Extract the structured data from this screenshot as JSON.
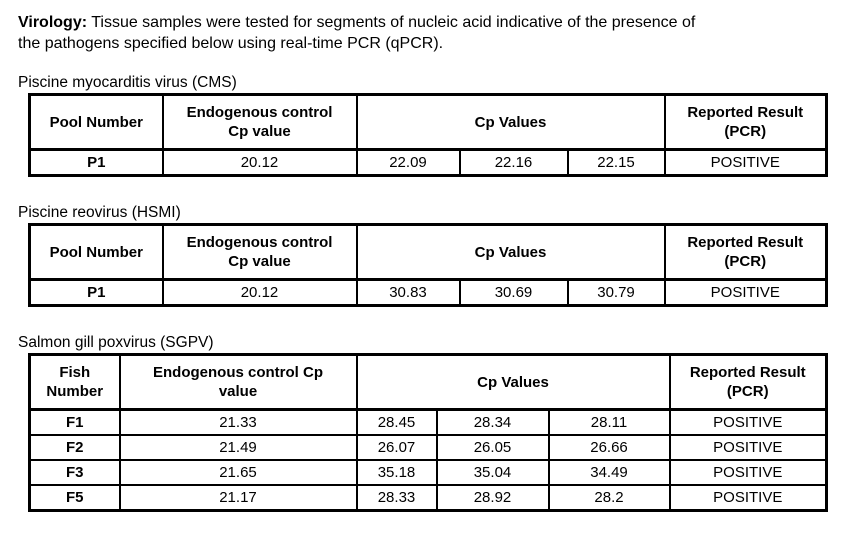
{
  "intro": {
    "label": "Virology:",
    "line1": "Tissue samples were tested for segments of nucleic acid indicative of the presence of",
    "line2": "the pathogens specified below using real-time PCR (qPCR)."
  },
  "sections": [
    {
      "title": "Piscine myocarditis virus (CMS)",
      "headers": {
        "id": "Pool Number",
        "endogenous": "Endogenous control Cp value",
        "cp": "Cp Values",
        "result": "Reported Result (PCR)"
      },
      "rows": [
        {
          "id": "P1",
          "endogenous": "20.12",
          "cp1": "22.09",
          "cp2": "22.16",
          "cp3": "22.15",
          "result": "POSITIVE"
        }
      ]
    },
    {
      "title": "Piscine reovirus (HSMI)",
      "headers": {
        "id": "Pool Number",
        "endogenous": "Endogenous control Cp value",
        "cp": "Cp Values",
        "result": "Reported Result (PCR)"
      },
      "rows": [
        {
          "id": "P1",
          "endogenous": "20.12",
          "cp1": "30.83",
          "cp2": "30.69",
          "cp3": "30.79",
          "result": "POSITIVE"
        }
      ]
    },
    {
      "title": "Salmon gill poxvirus (SGPV)",
      "headers": {
        "id": "Fish Number",
        "endogenous": "Endogenous control Cp value",
        "cp": "Cp Values",
        "result": "Reported Result (PCR)"
      },
      "rows": [
        {
          "id": "F1",
          "endogenous": "21.33",
          "cp1": "28.45",
          "cp2": "28.34",
          "cp3": "28.11",
          "result": "POSITIVE"
        },
        {
          "id": "F2",
          "endogenous": "21.49",
          "cp1": "26.07",
          "cp2": "26.05",
          "cp3": "26.66",
          "result": "POSITIVE"
        },
        {
          "id": "F3",
          "endogenous": "21.65",
          "cp1": "35.18",
          "cp2": "35.04",
          "cp3": "34.49",
          "result": "POSITIVE"
        },
        {
          "id": "F5",
          "endogenous": "21.17",
          "cp1": "28.33",
          "cp2": "28.92",
          "cp3": "28.2",
          "result": "POSITIVE"
        }
      ]
    }
  ]
}
